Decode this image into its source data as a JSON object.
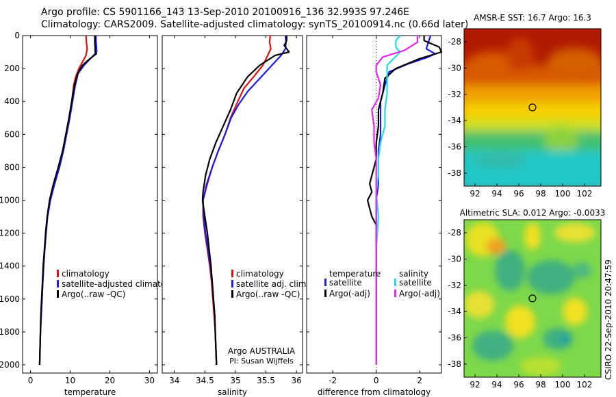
{
  "header": {
    "line1": "Argo profile: CS 5901166_143 13-Sep-2010 20100916_136 32.993S 97.246E",
    "line2": "Climatology: CARS2009. Satellite-adjusted climatology: synTS_20100914.nc (0.66d later)"
  },
  "colors": {
    "climatology": "#e01010",
    "satellite": "#1a1ae6",
    "argo": "#000000",
    "sal_satellite": "#22dde8",
    "sal_argo": "#ee22ee"
  },
  "chart_data": [
    {
      "type": "line",
      "name": "temperature",
      "xlabel": "temperature",
      "ylabel": "",
      "xlim": [
        -2,
        32
      ],
      "ylim": [
        2050,
        0
      ],
      "xticks": [
        0,
        10,
        20,
        30
      ],
      "yticks": [
        0,
        200,
        400,
        600,
        800,
        1000,
        1200,
        1400,
        1600,
        1800,
        2000
      ],
      "legend": [
        "climatology",
        "satellite-adjusted climatolog",
        "Argo(..raw -QC)"
      ],
      "series": [
        {
          "name": "climatology",
          "color": "#e01010",
          "points": [
            [
              14.0,
              0
            ],
            [
              14.1,
              40
            ],
            [
              14.3,
              80
            ],
            [
              14.0,
              120
            ],
            [
              13.1,
              160
            ],
            [
              12.2,
              200
            ],
            [
              11.4,
              250
            ],
            [
              10.9,
              300
            ],
            [
              10.4,
              400
            ],
            [
              9.7,
              500
            ],
            [
              8.9,
              600
            ],
            [
              8.2,
              700
            ],
            [
              7.2,
              800
            ],
            [
              6.0,
              900
            ],
            [
              5.0,
              1000
            ],
            [
              4.3,
              1100
            ],
            [
              3.9,
              1200
            ],
            [
              3.6,
              1300
            ],
            [
              3.3,
              1400
            ],
            [
              3.1,
              1500
            ],
            [
              2.9,
              1600
            ],
            [
              2.7,
              1700
            ],
            [
              2.5,
              1800
            ],
            [
              2.4,
              1900
            ],
            [
              2.3,
              2000
            ]
          ]
        },
        {
          "name": "satellite-adjusted climatolog",
          "color": "#1a1ae6",
          "points": [
            [
              16.5,
              0
            ],
            [
              16.5,
              30
            ],
            [
              16.6,
              60
            ],
            [
              16.7,
              100
            ],
            [
              15.5,
              130
            ],
            [
              13.5,
              180
            ],
            [
              12.0,
              230
            ],
            [
              11.3,
              300
            ],
            [
              10.6,
              400
            ],
            [
              9.9,
              500
            ],
            [
              9.1,
              600
            ],
            [
              8.3,
              700
            ],
            [
              7.3,
              800
            ],
            [
              6.1,
              900
            ],
            [
              5.0,
              1000
            ],
            [
              4.3,
              1100
            ],
            [
              3.9,
              1200
            ],
            [
              3.6,
              1300
            ],
            [
              3.3,
              1400
            ],
            [
              3.1,
              1500
            ],
            [
              2.9,
              1600
            ],
            [
              2.7,
              1700
            ],
            [
              2.5,
              1800
            ],
            [
              2.4,
              1900
            ],
            [
              2.3,
              2000
            ]
          ]
        },
        {
          "name": "Argo(..raw -QC)",
          "color": "#000000",
          "points": [
            [
              16.2,
              0
            ],
            [
              16.2,
              40
            ],
            [
              16.3,
              80
            ],
            [
              16.3,
              100
            ],
            [
              16.6,
              110
            ],
            [
              15.0,
              140
            ],
            [
              13.1,
              180
            ],
            [
              11.9,
              230
            ],
            [
              11.1,
              300
            ],
            [
              10.4,
              400
            ],
            [
              9.7,
              500
            ],
            [
              8.9,
              600
            ],
            [
              8.1,
              700
            ],
            [
              7.0,
              800
            ],
            [
              5.8,
              900
            ],
            [
              4.8,
              1000
            ],
            [
              4.2,
              1100
            ],
            [
              3.8,
              1200
            ],
            [
              3.5,
              1300
            ],
            [
              3.2,
              1400
            ],
            [
              3.0,
              1500
            ],
            [
              2.8,
              1600
            ],
            [
              2.6,
              1700
            ],
            [
              2.5,
              1800
            ],
            [
              2.4,
              1900
            ],
            [
              2.3,
              2000
            ]
          ]
        }
      ]
    },
    {
      "type": "line",
      "name": "salinity",
      "xlabel": "salinity",
      "ylabel": "",
      "xlim": [
        33.8,
        36.1
      ],
      "ylim": [
        2050,
        0
      ],
      "xticks": [
        34,
        34.5,
        35,
        35.5,
        36
      ],
      "yticks": [
        0,
        200,
        400,
        600,
        800,
        1000,
        1200,
        1400,
        1600,
        1800,
        2000
      ],
      "legend": [
        "climatology",
        "satellite adj. clim.",
        "Argo(..raw -QC)"
      ],
      "annotation": [
        "Argo AUSTRALIA",
        "PI: Susan Wijffels"
      ],
      "series": [
        {
          "name": "climatology",
          "color": "#e01010",
          "points": [
            [
              35.57,
              0
            ],
            [
              35.56,
              40
            ],
            [
              35.58,
              80
            ],
            [
              35.53,
              120
            ],
            [
              35.45,
              180
            ],
            [
              35.3,
              250
            ],
            [
              35.14,
              320
            ],
            [
              35.04,
              400
            ],
            [
              34.92,
              500
            ],
            [
              34.83,
              600
            ],
            [
              34.72,
              700
            ],
            [
              34.62,
              800
            ],
            [
              34.54,
              900
            ],
            [
              34.47,
              1000
            ],
            [
              34.47,
              1100
            ],
            [
              34.5,
              1200
            ],
            [
              34.54,
              1300
            ],
            [
              34.58,
              1400
            ],
            [
              34.61,
              1500
            ],
            [
              34.63,
              1600
            ],
            [
              34.65,
              1700
            ],
            [
              34.67,
              1800
            ],
            [
              34.68,
              1900
            ],
            [
              34.69,
              2000
            ]
          ]
        },
        {
          "name": "satellite adj. clim.",
          "color": "#1a1ae6",
          "points": [
            [
              35.82,
              0
            ],
            [
              35.83,
              40
            ],
            [
              35.82,
              80
            ],
            [
              35.75,
              120
            ],
            [
              35.6,
              180
            ],
            [
              35.4,
              260
            ],
            [
              35.2,
              340
            ],
            [
              35.05,
              420
            ],
            [
              34.93,
              500
            ],
            [
              34.83,
              600
            ],
            [
              34.72,
              700
            ],
            [
              34.62,
              800
            ],
            [
              34.53,
              900
            ],
            [
              34.47,
              1000
            ],
            [
              34.48,
              1100
            ],
            [
              34.51,
              1200
            ],
            [
              34.55,
              1300
            ],
            [
              34.59,
              1400
            ],
            [
              34.62,
              1500
            ],
            [
              34.64,
              1600
            ],
            [
              34.66,
              1700
            ],
            [
              34.67,
              1800
            ],
            [
              34.68,
              1900
            ],
            [
              34.69,
              2000
            ]
          ]
        },
        {
          "name": "Argo(..raw -QC)",
          "color": "#000000",
          "points": [
            [
              35.84,
              0
            ],
            [
              35.84,
              30
            ],
            [
              35.8,
              60
            ],
            [
              35.88,
              100
            ],
            [
              35.65,
              120
            ],
            [
              35.4,
              180
            ],
            [
              35.2,
              250
            ],
            [
              35.02,
              350
            ],
            [
              34.92,
              450
            ],
            [
              34.8,
              550
            ],
            [
              34.68,
              650
            ],
            [
              34.58,
              750
            ],
            [
              34.51,
              850
            ],
            [
              34.47,
              950
            ],
            [
              34.46,
              1000
            ],
            [
              34.5,
              1100
            ],
            [
              34.54,
              1200
            ],
            [
              34.57,
              1300
            ],
            [
              34.6,
              1400
            ],
            [
              34.62,
              1500
            ],
            [
              34.64,
              1600
            ],
            [
              34.66,
              1700
            ],
            [
              34.67,
              1800
            ],
            [
              34.68,
              1900
            ],
            [
              34.69,
              2000
            ]
          ]
        }
      ]
    },
    {
      "type": "line",
      "name": "difference from climatology",
      "xlabel": "difference from climatology",
      "ylabel": "",
      "xlim": [
        -3.2,
        3.0
      ],
      "ylim": [
        2050,
        0
      ],
      "xticks": [
        -2,
        0,
        2
      ],
      "yticks": [
        0,
        200,
        400,
        600,
        800,
        1000,
        1200,
        1400,
        1600,
        1800,
        2000
      ],
      "legend_titles": [
        "temperature",
        "salinity"
      ],
      "legend": [
        "satellite",
        "Argo(-adj)",
        "satellite",
        "Argo(-adj)"
      ],
      "series": [
        {
          "name": "temperature satellite",
          "color": "#1a1ae6",
          "points": [
            [
              2.5,
              0
            ],
            [
              2.4,
              40
            ],
            [
              2.3,
              80
            ],
            [
              2.7,
              110
            ],
            [
              2.4,
              130
            ],
            [
              1.5,
              170
            ],
            [
              0.6,
              220
            ],
            [
              0.4,
              300
            ],
            [
              0.2,
              400
            ],
            [
              0.2,
              500
            ],
            [
              0.2,
              600
            ],
            [
              0.1,
              700
            ],
            [
              0.1,
              800
            ],
            [
              0.1,
              900
            ],
            [
              0.0,
              1000
            ],
            [
              0.0,
              1200
            ],
            [
              0.0,
              1500
            ],
            [
              0.0,
              1800
            ],
            [
              0.0,
              2000
            ]
          ]
        },
        {
          "name": "temperature Argo(-adj)",
          "color": "#000000",
          "points": [
            [
              2.2,
              0
            ],
            [
              2.2,
              30
            ],
            [
              2.9,
              70
            ],
            [
              3.0,
              100
            ],
            [
              2.0,
              140
            ],
            [
              0.9,
              200
            ],
            [
              0.4,
              260
            ],
            [
              0.3,
              350
            ],
            [
              0.1,
              450
            ],
            [
              0.1,
              550
            ],
            [
              0.0,
              650
            ],
            [
              0.0,
              750
            ],
            [
              -0.2,
              850
            ],
            [
              -0.3,
              900
            ],
            [
              -0.2,
              950
            ],
            [
              -0.4,
              1000
            ],
            [
              -0.3,
              1050
            ],
            [
              -0.2,
              1100
            ],
            [
              0.0,
              1150
            ],
            [
              0.0,
              1250
            ],
            [
              0.0,
              1400
            ],
            [
              0.0,
              1600
            ],
            [
              0.0,
              1800
            ],
            [
              0.0,
              2000
            ]
          ]
        },
        {
          "name": "salinity satellite",
          "color": "#22dde8",
          "points": [
            [
              1.1,
              0
            ],
            [
              0.9,
              30
            ],
            [
              0.9,
              70
            ],
            [
              1.1,
              100
            ],
            [
              0.8,
              140
            ],
            [
              0.5,
              180
            ],
            [
              0.5,
              250
            ],
            [
              0.5,
              350
            ],
            [
              0.4,
              450
            ],
            [
              0.4,
              550
            ],
            [
              0.2,
              650
            ],
            [
              0.1,
              750
            ],
            [
              0.1,
              850
            ],
            [
              0.0,
              950
            ],
            [
              0.1,
              1100
            ],
            [
              0.0,
              1300
            ],
            [
              0.0,
              1500
            ],
            [
              0.0,
              1800
            ],
            [
              0.0,
              2000
            ]
          ]
        },
        {
          "name": "salinity Argo(-adj)",
          "color": "#ee22ee",
          "points": [
            [
              1.9,
              0
            ],
            [
              1.9,
              40
            ],
            [
              1.3,
              90
            ],
            [
              0.3,
              130
            ],
            [
              0.0,
              180
            ],
            [
              0.0,
              220
            ],
            [
              0.2,
              300
            ],
            [
              0.1,
              380
            ],
            [
              -0.2,
              450
            ],
            [
              -0.1,
              550
            ],
            [
              -0.1,
              650
            ],
            [
              0.0,
              750
            ],
            [
              0.0,
              850
            ],
            [
              0.0,
              1000
            ],
            [
              0.0,
              1200
            ],
            [
              0.0,
              1500
            ],
            [
              0.0,
              1800
            ],
            [
              0.0,
              2000
            ]
          ]
        }
      ]
    },
    {
      "type": "heatmap",
      "name": "AMSR-E SST",
      "title": "AMSR-E SST: 16.7 Argo: 16.3",
      "xlim": [
        91,
        103.5
      ],
      "ylim": [
        -39,
        -27
      ],
      "xticks": [
        92,
        94,
        96,
        98,
        100,
        102
      ],
      "yticks": [
        -28,
        -30,
        -32,
        -34,
        -36,
        -38
      ],
      "marker": [
        97.246,
        -32.993
      ]
    },
    {
      "type": "heatmap",
      "name": "Altimetric SLA",
      "title": "Altimetric SLA: 0.012 Argo: -0.0033",
      "xlim": [
        91,
        103.5
      ],
      "ylim": [
        -39,
        -27
      ],
      "xticks": [
        92,
        94,
        96,
        98,
        100,
        102
      ],
      "yticks": [
        -28,
        -30,
        -32,
        -34,
        -36,
        -38
      ],
      "marker": [
        97.246,
        -32.993
      ]
    }
  ],
  "footer": {
    "credit": "CSIRO 22-Sep-2010 20:47:59"
  }
}
